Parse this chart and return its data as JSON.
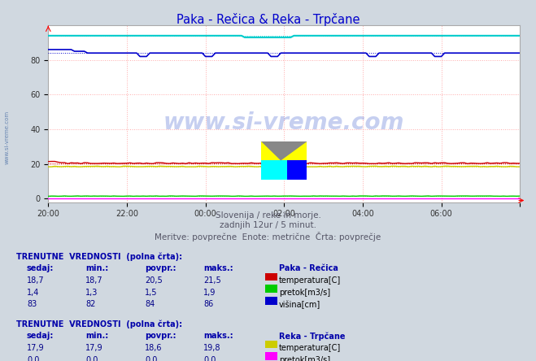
{
  "title": "Paka - Rečica & Reka - Trpčane",
  "title_color": "#0000cc",
  "bg_color": "#d0d8e0",
  "plot_bg_color": "#ffffff",
  "xlim": [
    0,
    144
  ],
  "ylim": [
    -2,
    100
  ],
  "yticks": [
    0,
    20,
    40,
    60,
    80
  ],
  "xtick_labels": [
    "20:00",
    "22:00",
    "00:00",
    "02:00",
    "04:00",
    "06:00"
  ],
  "grid_color": "#ffaaaa",
  "watermark": "www.si-vreme.com",
  "subtitle1": "Slovenija / reke in morje.",
  "subtitle2": "zadnjih 12ur / 5 minut.",
  "subtitle3": "Meritve: povprečne  Enote: metrične  Črta: povprečje",
  "n_points": 145,
  "paka_temp_val": 20.5,
  "paka_temp_min": 18.7,
  "paka_temp_max": 21.5,
  "paka_pretok_val": 1.5,
  "paka_pretok_min": 1.3,
  "paka_pretok_max": 1.9,
  "paka_visina_val": 84,
  "paka_visina_min": 82,
  "paka_visina_max": 86,
  "reka_temp_val": 18.6,
  "reka_temp_min": 17.9,
  "reka_temp_max": 19.8,
  "reka_pretok_val": 0.0,
  "reka_pretok_min": 0.0,
  "reka_pretok_max": 0.0,
  "reka_visina_val": 94,
  "reka_visina_min": 93,
  "reka_visina_max": 94,
  "color_paka_temp": "#cc0000",
  "color_paka_pretok": "#00cc00",
  "color_paka_visina": "#0000cc",
  "color_reka_temp": "#cccc00",
  "color_reka_pretok": "#ff00ff",
  "color_reka_visina": "#00cccc",
  "table_header_color": "#0000aa",
  "table_value_color": "#000088",
  "label_color": "#333333"
}
